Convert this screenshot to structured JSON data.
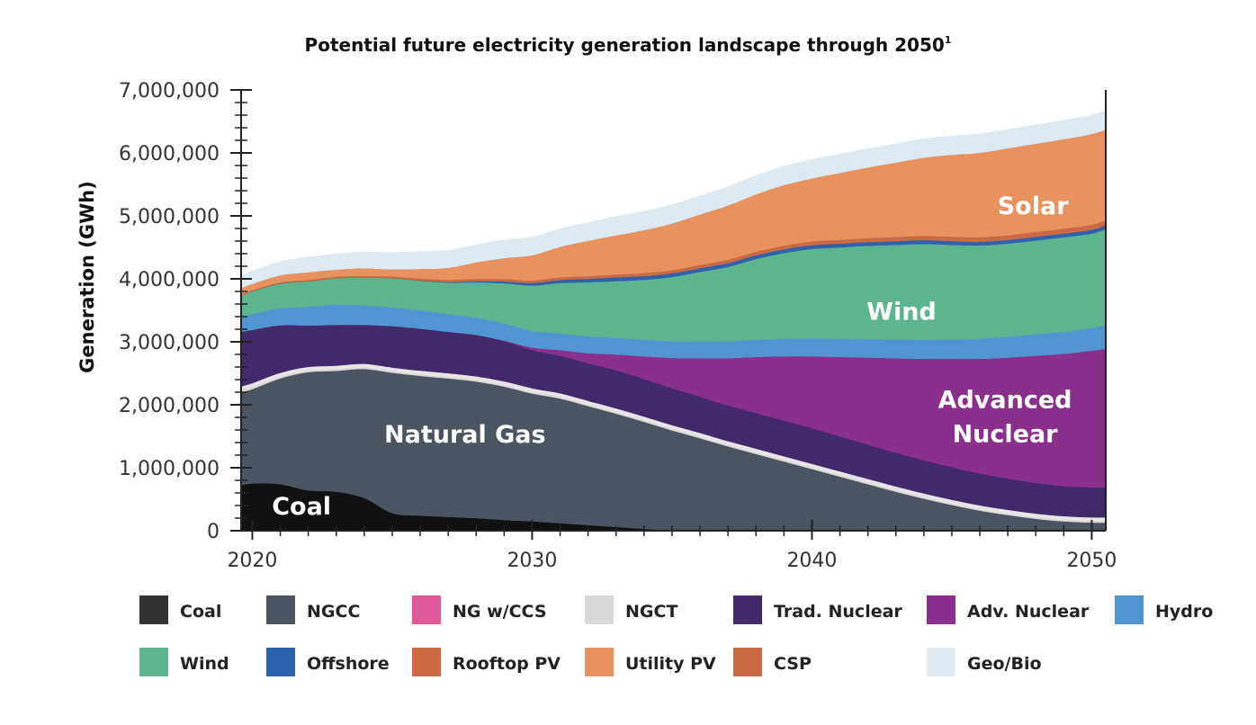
{
  "chart_data": {
    "type": "area",
    "title": "Potential future electricity generation landscape through 2050",
    "title_superscript": "1",
    "ylabel": "Generation (GWh)",
    "xlabel": "",
    "xlim": [
      2019.6,
      2050.5
    ],
    "ylim": [
      0,
      7000000
    ],
    "ytick_labels": [
      "0",
      "1,000,000",
      "2,000,000",
      "3,000,000",
      "4,000,000",
      "5,000,000",
      "6,000,000",
      "7,000,000"
    ],
    "ytick_values": [
      0,
      1000000,
      2000000,
      3000000,
      4000000,
      5000000,
      6000000,
      7000000
    ],
    "xtick_labels": [
      "2020",
      "2030",
      "2040",
      "2050"
    ],
    "xtick_values": [
      2020,
      2030,
      2040,
      2050
    ],
    "x": [
      2019.6,
      2020,
      2021,
      2022,
      2023,
      2024,
      2025,
      2026,
      2027,
      2028,
      2029,
      2030,
      2031,
      2032,
      2033,
      2034,
      2035,
      2036,
      2037,
      2038,
      2039,
      2040,
      2041,
      2042,
      2043,
      2044,
      2045,
      2046,
      2047,
      2048,
      2049,
      2050,
      2050.5
    ],
    "series": [
      {
        "name": "Coal",
        "color": "#111111",
        "values": [
          720000,
          750000,
          740000,
          640000,
          620000,
          520000,
          280000,
          240000,
          220000,
          200000,
          170000,
          150000,
          120000,
          90000,
          60000,
          30000,
          5000,
          0,
          0,
          0,
          0,
          0,
          0,
          0,
          0,
          0,
          0,
          0,
          0,
          0,
          0,
          0,
          0
        ]
      },
      {
        "name": "NGCC",
        "color": "#4a5561",
        "values": [
          1480000,
          1500000,
          1680000,
          1880000,
          1920000,
          2050000,
          2230000,
          2220000,
          2200000,
          2170000,
          2120000,
          2030000,
          1980000,
          1890000,
          1800000,
          1700000,
          1590000,
          1470000,
          1340000,
          1220000,
          1100000,
          980000,
          860000,
          740000,
          620000,
          510000,
          410000,
          320000,
          250000,
          190000,
          150000,
          130000,
          130000
        ]
      },
      {
        "name": "NG w/CCS",
        "color": "#e05a9a",
        "values": [
          0,
          0,
          0,
          0,
          0,
          0,
          0,
          0,
          0,
          0,
          0,
          0,
          0,
          0,
          0,
          0,
          0,
          0,
          0,
          0,
          0,
          0,
          0,
          0,
          0,
          0,
          0,
          0,
          0,
          0,
          0,
          0,
          0
        ]
      },
      {
        "name": "NGCT",
        "color": "#d8d8d8",
        "values": [
          60000,
          60000,
          55000,
          50000,
          50000,
          50000,
          50000,
          50000,
          50000,
          50000,
          50000,
          50000,
          50000,
          50000,
          50000,
          50000,
          50000,
          50000,
          50000,
          50000,
          50000,
          50000,
          50000,
          50000,
          50000,
          50000,
          50000,
          50000,
          50000,
          50000,
          50000,
          50000,
          50000
        ]
      },
      {
        "name": "Trad. Nuclear",
        "color": "#422a6a",
        "values": [
          900000,
          880000,
          790000,
          690000,
          680000,
          650000,
          690000,
          700000,
          690000,
          690000,
          670000,
          640000,
          630000,
          630000,
          640000,
          630000,
          620000,
          610000,
          600000,
          600000,
          600000,
          600000,
          590000,
          580000,
          570000,
          560000,
          550000,
          540000,
          530000,
          520000,
          510000,
          510000,
          510000
        ]
      },
      {
        "name": "Adv. Nuclear",
        "color": "#8b2f8c",
        "values": [
          0,
          0,
          0,
          0,
          0,
          0,
          0,
          0,
          0,
          0,
          10000,
          40000,
          90000,
          160000,
          250000,
          360000,
          480000,
          610000,
          750000,
          890000,
          1020000,
          1140000,
          1260000,
          1380000,
          1500000,
          1610000,
          1720000,
          1820000,
          1920000,
          2020000,
          2100000,
          2170000,
          2200000
        ]
      },
      {
        "name": "Hydro",
        "color": "#5196d2",
        "values": [
          240000,
          250000,
          270000,
          300000,
          320000,
          310000,
          300000,
          290000,
          280000,
          275000,
          270000,
          265000,
          265000,
          265000,
          265000,
          265000,
          265000,
          270000,
          270000,
          275000,
          280000,
          285000,
          290000,
          295000,
          300000,
          305000,
          310000,
          320000,
          330000,
          340000,
          350000,
          360000,
          380000
        ]
      },
      {
        "name": "Wind",
        "color": "#5cb58e",
        "values": [
          330000,
          360000,
          390000,
          400000,
          420000,
          440000,
          460000,
          470000,
          500000,
          560000,
          640000,
          720000,
          800000,
          860000,
          900000,
          950000,
          1020000,
          1100000,
          1180000,
          1280000,
          1360000,
          1420000,
          1450000,
          1480000,
          1500000,
          1520000,
          1500000,
          1480000,
          1480000,
          1490000,
          1500000,
          1500000,
          1520000
        ]
      },
      {
        "name": "Offshore",
        "color": "#2f62ad",
        "values": [
          0,
          0,
          0,
          0,
          0,
          0,
          0,
          5000,
          10000,
          20000,
          30000,
          40000,
          50000,
          55000,
          60000,
          60000,
          60000,
          60000,
          60000,
          60000,
          60000,
          60000,
          60000,
          60000,
          60000,
          60000,
          60000,
          60000,
          60000,
          60000,
          60000,
          60000,
          60000
        ]
      },
      {
        "name": "Rooftop PV",
        "color": "#c96a43",
        "values": [
          20000,
          20000,
          22000,
          24000,
          26000,
          28000,
          30000,
          32000,
          34000,
          36000,
          38000,
          40000,
          42000,
          44000,
          46000,
          48000,
          50000,
          52000,
          54000,
          56000,
          58000,
          60000,
          62000,
          64000,
          66000,
          68000,
          70000,
          72000,
          74000,
          76000,
          78000,
          80000,
          80000
        ]
      },
      {
        "name": "Utility PV",
        "color": "#e8935f",
        "values": [
          100000,
          100000,
          110000,
          120000,
          110000,
          120000,
          110000,
          150000,
          190000,
          260000,
          330000,
          400000,
          480000,
          560000,
          620000,
          680000,
          740000,
          800000,
          860000,
          910000,
          960000,
          1000000,
          1060000,
          1120000,
          1180000,
          1240000,
          1300000,
          1340000,
          1380000,
          1400000,
          1420000,
          1440000,
          1440000
        ]
      },
      {
        "name": "CSP",
        "color": "#b85c35",
        "values": [
          0,
          0,
          0,
          0,
          0,
          0,
          0,
          0,
          0,
          0,
          0,
          0,
          0,
          0,
          0,
          0,
          0,
          0,
          0,
          0,
          0,
          0,
          0,
          0,
          0,
          0,
          0,
          0,
          0,
          0,
          0,
          0,
          0
        ]
      },
      {
        "name": "Geo/Bio",
        "color": "#ddeaf4",
        "values": [
          190000,
          200000,
          220000,
          240000,
          250000,
          260000,
          270000,
          280000,
          280000,
          280000,
          290000,
          290000,
          290000,
          290000,
          300000,
          300000,
          300000,
          300000,
          300000,
          300000,
          300000,
          300000,
          300000,
          300000,
          300000,
          300000,
          300000,
          300000,
          300000,
          300000,
          300000,
          300000,
          300000
        ]
      }
    ],
    "annotations": [
      "Coal",
      "Natural Gas",
      "Advanced",
      "Nuclear",
      "Wind",
      "Solar"
    ],
    "legend": {
      "placement": "bottom",
      "items": [
        {
          "label": "Coal",
          "color": "#333333"
        },
        {
          "label": "NGCC",
          "color": "#4a5561"
        },
        {
          "label": "NG w/CCS",
          "color": "#e05a9a"
        },
        {
          "label": "NGCT",
          "color": "#d8d8d8"
        },
        {
          "label": "Trad. Nuclear",
          "color": "#422a6a"
        },
        {
          "label": "Adv. Nuclear",
          "color": "#8b2f8c"
        },
        {
          "label": "Hydro",
          "color": "#5196d2"
        },
        {
          "label": "Wind",
          "color": "#5cb58e"
        },
        {
          "label": "Offshore",
          "color": "#2f62ad"
        },
        {
          "label": "Rooftop PV",
          "color": "#c96a43"
        },
        {
          "label": "Utility PV",
          "color": "#e8935f"
        },
        {
          "label": "CSP",
          "color": "#c96a43"
        },
        {
          "label": "Geo/Bio",
          "color": "#ddeaf4"
        }
      ]
    },
    "grid": false
  }
}
